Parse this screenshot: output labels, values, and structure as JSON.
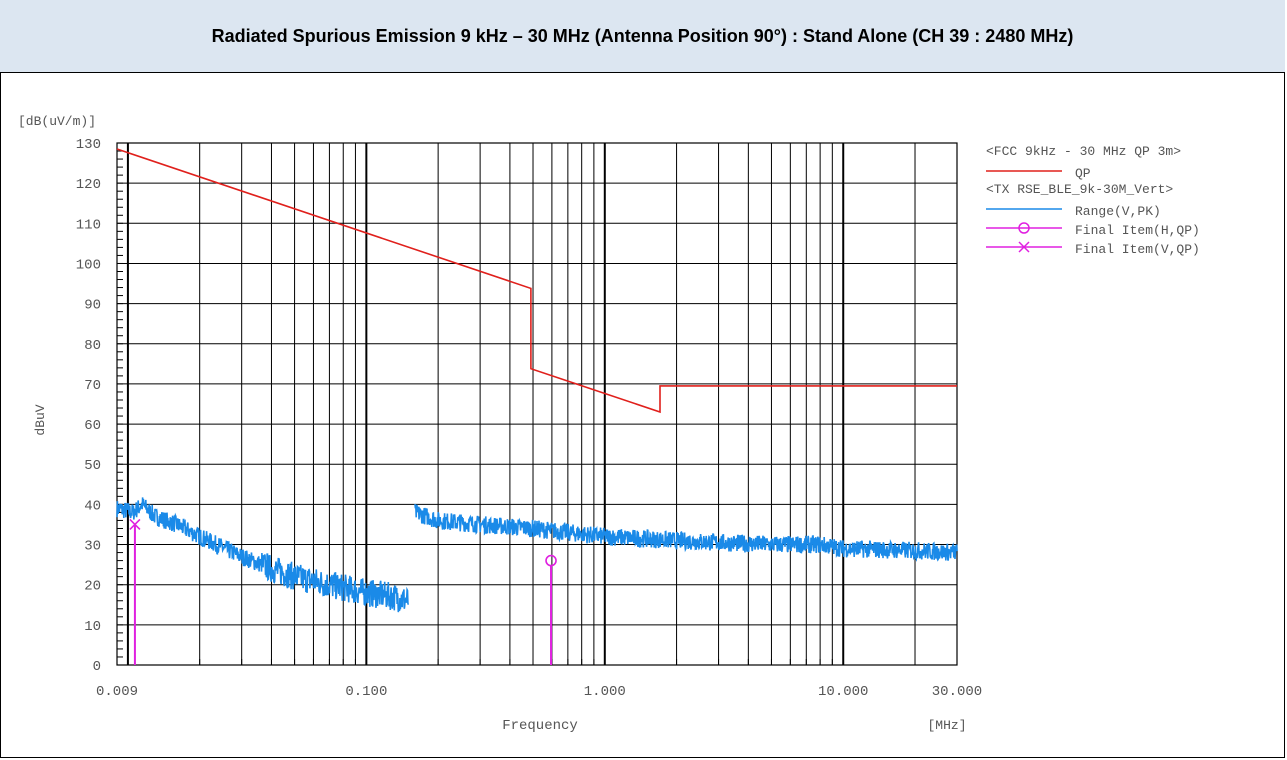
{
  "header": {
    "title": "Radiated Spurious Emission 9 kHz – 30 MHz (Antenna Position 90°) : Stand Alone (CH 39 : 2480 MHz)"
  },
  "chart_data": {
    "type": "line",
    "x_scale": "log",
    "x_range": [
      0.009,
      30
    ],
    "ylim": [
      0,
      130
    ],
    "y_unit_label": "[dB(uV/m)]",
    "ylabel": "dBuV",
    "xlabel": "Frequency",
    "x_unit_label": "[MHz]",
    "x_ticks": [
      "0.009",
      "0.100",
      "1.000",
      "10.000",
      "30.000"
    ],
    "x_tick_values": [
      0.009,
      0.1,
      1.0,
      10.0,
      30.0
    ],
    "y_ticks": [
      0,
      10,
      20,
      30,
      40,
      50,
      60,
      70,
      80,
      90,
      100,
      110,
      120,
      130
    ],
    "grid": true,
    "legend_position": "right",
    "legend": {
      "group1_title": "<FCC 9kHz - 30 MHz QP 3m>",
      "group1_items": [
        "QP"
      ],
      "group2_title": "<TX RSE_BLE_9k-30M_Vert>",
      "group2_items": [
        "Range(V,PK)",
        "Final Item(H,QP)",
        "Final Item(V,QP)"
      ]
    },
    "colors": {
      "limit": "#e0201c",
      "limit_dark": "#b00010",
      "range": "#1a8ae8",
      "final": "#e020e0",
      "grid": "#000000"
    },
    "series": [
      {
        "name": "QP",
        "kind": "limit",
        "x": [
          0.009,
          0.49,
          0.49,
          1.705,
          1.705,
          30
        ],
        "values": [
          128.5,
          93.8,
          73.8,
          63.0,
          69.5,
          69.5
        ]
      },
      {
        "name": "Range(V,PK)",
        "kind": "noise",
        "segments": [
          {
            "x": [
              0.009,
              0.0105,
              0.0115,
              0.013,
              0.016,
              0.02,
              0.03,
              0.04,
              0.05,
              0.07,
              0.1,
              0.13,
              0.15
            ],
            "values": [
              39,
              38,
              40,
              37,
              35,
              32,
              27,
              24,
              22,
              20,
              18,
              17,
              16
            ]
          },
          {
            "x": [
              0.16,
              0.2,
              0.3,
              0.5,
              0.7,
              1.0,
              2.0,
              3.0,
              5.0,
              8.0,
              10.0,
              20.0,
              30.0
            ],
            "values": [
              38,
              36,
              35,
              34,
              33,
              32,
              31,
              30.5,
              30,
              30,
              29,
              28.5,
              28
            ]
          }
        ]
      },
      {
        "name": "Final Item(H,QP)",
        "kind": "marker-circle",
        "x": [
          0.595
        ],
        "values": [
          26
        ]
      },
      {
        "name": "Final Item(V,QP)",
        "kind": "marker-cross",
        "x": [
          0.0107
        ],
        "values": [
          35
        ]
      }
    ]
  }
}
